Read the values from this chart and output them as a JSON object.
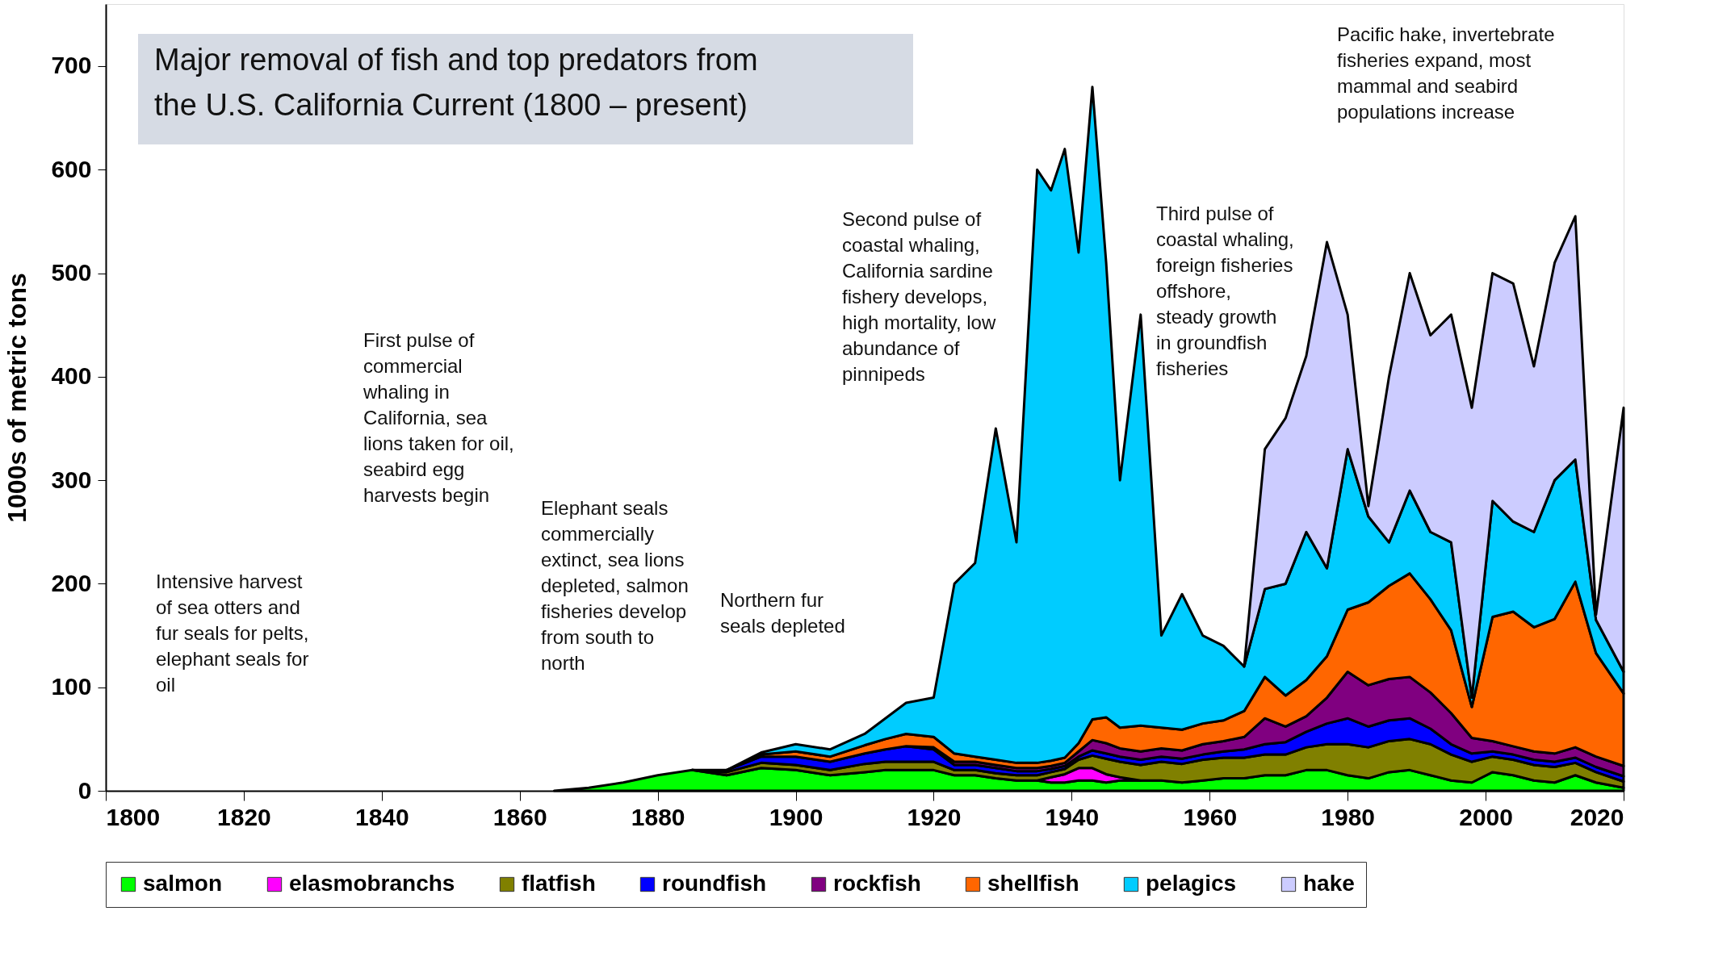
{
  "chart_data": {
    "type": "area",
    "stacked": true,
    "title": "Major removal of fish and top predators from the U.S. California Current (1800 – present)",
    "ylabel": "1000s of metric tons",
    "x": [
      1865,
      1870,
      1875,
      1880,
      1885,
      1890,
      1895,
      1900,
      1905,
      1910,
      1913,
      1916,
      1920,
      1923,
      1926,
      1929,
      1932,
      1935,
      1937,
      1939,
      1941,
      1943,
      1945,
      1947,
      1950,
      1953,
      1956,
      1959,
      1962,
      1965,
      1968,
      1971,
      1974,
      1977,
      1980,
      1983,
      1986,
      1989,
      1992,
      1995,
      1998,
      2001,
      2004,
      2007,
      2010,
      2013,
      2016,
      2020
    ],
    "series": [
      {
        "name": "salmon",
        "color": "#00ff00",
        "values": [
          0,
          3,
          8,
          15,
          20,
          15,
          22,
          20,
          15,
          18,
          20,
          20,
          20,
          15,
          15,
          12,
          10,
          10,
          8,
          8,
          10,
          10,
          8,
          10,
          10,
          10,
          8,
          10,
          12,
          12,
          15,
          15,
          20,
          20,
          15,
          12,
          18,
          20,
          15,
          10,
          8,
          18,
          15,
          10,
          8,
          15,
          8,
          3
        ]
      },
      {
        "name": "elasmobranchs",
        "color": "#ff00ff",
        "values": [
          null,
          null,
          null,
          null,
          null,
          null,
          null,
          null,
          null,
          null,
          null,
          null,
          null,
          null,
          null,
          null,
          null,
          0,
          5,
          8,
          12,
          12,
          8,
          3,
          0,
          null,
          null,
          null,
          null,
          null,
          null,
          null,
          null,
          null,
          null,
          null,
          null,
          null,
          null,
          null,
          null,
          null,
          null,
          null,
          null,
          null,
          null,
          null
        ]
      },
      {
        "name": "flatfish",
        "color": "#808000",
        "values": [
          null,
          null,
          null,
          null,
          0,
          3,
          5,
          5,
          5,
          8,
          8,
          8,
          8,
          5,
          5,
          5,
          5,
          5,
          5,
          5,
          8,
          12,
          15,
          15,
          15,
          18,
          18,
          20,
          20,
          20,
          20,
          20,
          22,
          25,
          30,
          30,
          30,
          30,
          30,
          25,
          20,
          15,
          15,
          15,
          15,
          12,
          10,
          6
        ]
      },
      {
        "name": "roundfish",
        "color": "#0000ff",
        "values": [
          null,
          null,
          null,
          null,
          0,
          2,
          6,
          8,
          8,
          10,
          12,
          15,
          12,
          5,
          5,
          5,
          4,
          4,
          3,
          3,
          3,
          5,
          5,
          5,
          5,
          5,
          5,
          5,
          6,
          8,
          10,
          12,
          15,
          20,
          25,
          20,
          20,
          20,
          15,
          10,
          8,
          5,
          5,
          5,
          5,
          5,
          5,
          5
        ]
      },
      {
        "name": "rockfish",
        "color": "#800080",
        "values": [
          null,
          null,
          null,
          null,
          null,
          null,
          null,
          null,
          null,
          null,
          null,
          0,
          2,
          3,
          3,
          3,
          3,
          3,
          3,
          3,
          5,
          10,
          10,
          8,
          8,
          8,
          8,
          10,
          10,
          12,
          25,
          15,
          15,
          25,
          45,
          40,
          40,
          40,
          35,
          30,
          15,
          10,
          8,
          8,
          8,
          10,
          10,
          10
        ]
      },
      {
        "name": "shellfish",
        "color": "#ff6600",
        "values": [
          null,
          null,
          null,
          null,
          null,
          0,
          2,
          5,
          5,
          8,
          10,
          12,
          10,
          8,
          5,
          5,
          5,
          5,
          5,
          5,
          8,
          20,
          25,
          20,
          25,
          20,
          20,
          20,
          20,
          25,
          40,
          30,
          35,
          40,
          60,
          80,
          90,
          100,
          90,
          80,
          30,
          120,
          130,
          120,
          130,
          160,
          100,
          70
        ]
      },
      {
        "name": "pelagics",
        "color": "#00ccff",
        "values": [
          null,
          null,
          null,
          null,
          null,
          0,
          2,
          7,
          7,
          11,
          20,
          30,
          38,
          164,
          187,
          320,
          213,
          573,
          551,
          588,
          474,
          611,
          439,
          239,
          397,
          89,
          131,
          85,
          72,
          43,
          85,
          108,
          143,
          85,
          155,
          83,
          42,
          80,
          65,
          85,
          9,
          112,
          87,
          92,
          134,
          118,
          32,
          21
        ]
      },
      {
        "name": "hake",
        "color": "#ccccff",
        "values": [
          null,
          null,
          null,
          null,
          null,
          null,
          null,
          null,
          null,
          null,
          null,
          null,
          null,
          null,
          null,
          null,
          null,
          null,
          null,
          null,
          null,
          null,
          null,
          null,
          null,
          null,
          null,
          null,
          null,
          0,
          135,
          160,
          170,
          315,
          130,
          10,
          160,
          210,
          190,
          220,
          280,
          220,
          230,
          160,
          210,
          235,
          5,
          255
        ]
      }
    ],
    "xlim": [
      1800,
      2020
    ],
    "xticks": [
      1800,
      1820,
      1840,
      1860,
      1880,
      1900,
      1920,
      1940,
      1960,
      1980,
      2000,
      2020
    ],
    "ylim": [
      0,
      760
    ],
    "yticks": [
      0,
      100,
      200,
      300,
      400,
      500,
      600,
      700
    ],
    "grid": false,
    "legend": "bottom",
    "annotations": [
      "Intensive harvest\nof sea otters and\nfur seals for pelts,\nelephant seals for\noil",
      "First pulse  of\ncommercial\nwhaling  in\nCalifornia,  sea\nlions  taken for oil,\nseabird egg\nharvests begin",
      "Elephant seals\ncommercially\nextinct, sea lions\ndepleted, salmon\nfisheries develop\nfrom south to\nnorth",
      "Northern fur\nseals depleted",
      "Second pulse of\ncoastal whaling,\nCalifornia  sardine\nfishery develops,\nhigh  mortality,  low\nabundance of\npinnipeds",
      "Third pulse  of\ncoastal whaling,\nforeign  fisheries\noffshore,\nsteady growth\nin  groundfish\nfisheries",
      "Pacific hake, invertebrate\nfisheries  expand, most\nmammal and  seabird\npopulations  increase"
    ]
  }
}
